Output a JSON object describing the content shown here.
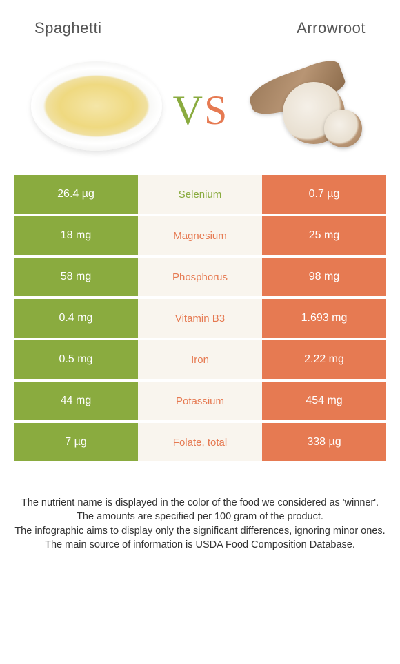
{
  "colors": {
    "left_bg": "#8aab3f",
    "right_bg": "#e67a52",
    "mid_bg": "#f9f5ee",
    "text_light": "#ffffff",
    "title_color": "#555555"
  },
  "header": {
    "left_title": "Spaghetti",
    "right_title": "Arrowroot"
  },
  "vs": {
    "v": "V",
    "s": "S"
  },
  "rows": [
    {
      "left": "26.4 µg",
      "name": "Selenium",
      "right": "0.7 µg",
      "winner": "left"
    },
    {
      "left": "18 mg",
      "name": "Magnesium",
      "right": "25 mg",
      "winner": "right"
    },
    {
      "left": "58 mg",
      "name": "Phosphorus",
      "right": "98 mg",
      "winner": "right"
    },
    {
      "left": "0.4 mg",
      "name": "Vitamin B3",
      "right": "1.693 mg",
      "winner": "right"
    },
    {
      "left": "0.5 mg",
      "name": "Iron",
      "right": "2.22 mg",
      "winner": "right"
    },
    {
      "left": "44 mg",
      "name": "Potassium",
      "right": "454 mg",
      "winner": "right"
    },
    {
      "left": "7 µg",
      "name": "Folate, total",
      "right": "338 µg",
      "winner": "right"
    }
  ],
  "footnotes": {
    "l1": "The nutrient name is displayed in the color of the food we considered as 'winner'.",
    "l2": "The amounts are specified per 100 gram of the product.",
    "l3": "The infographic aims to display only the significant differences, ignoring minor ones.",
    "l4": "The main source of information is USDA Food Composition Database."
  }
}
